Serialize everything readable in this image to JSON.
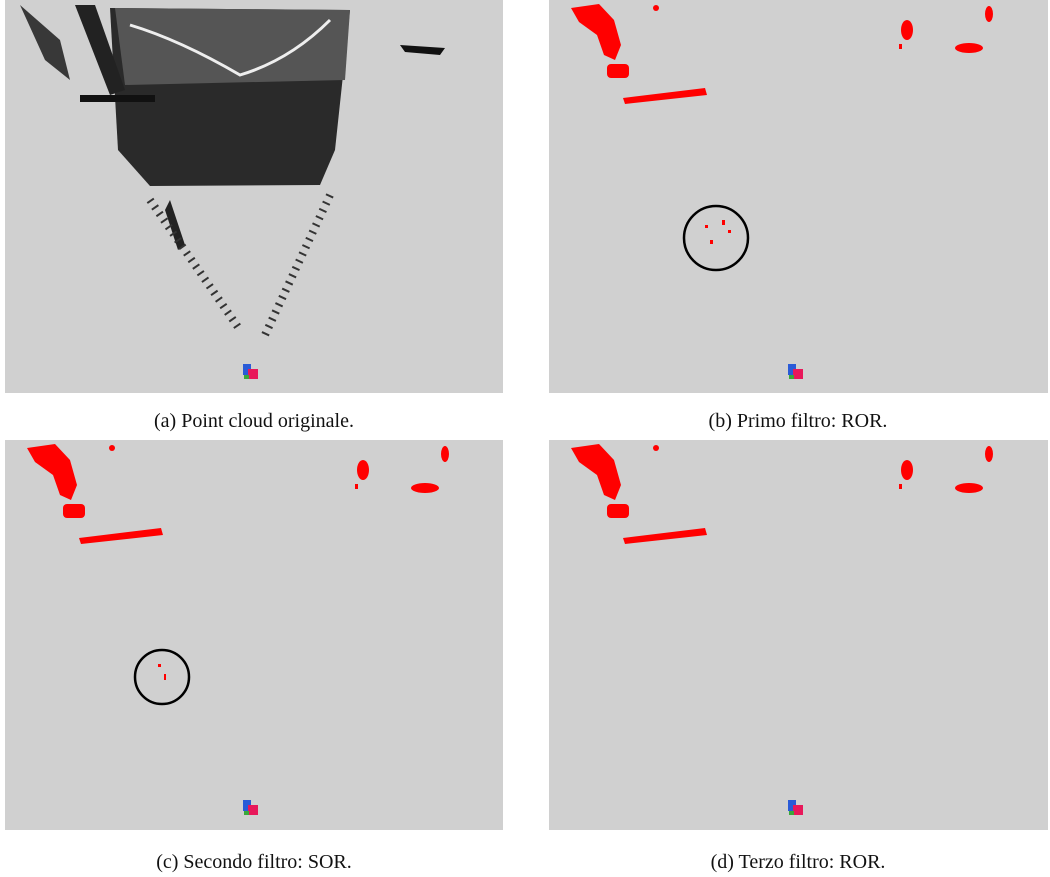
{
  "figures": [
    {
      "caption": "(a) Point cloud originale."
    },
    {
      "caption": "(b) Primo filtro: ROR."
    },
    {
      "caption": "(c) Secondo filtro: SOR."
    },
    {
      "caption": "(d) Terzo filtro: ROR."
    }
  ]
}
